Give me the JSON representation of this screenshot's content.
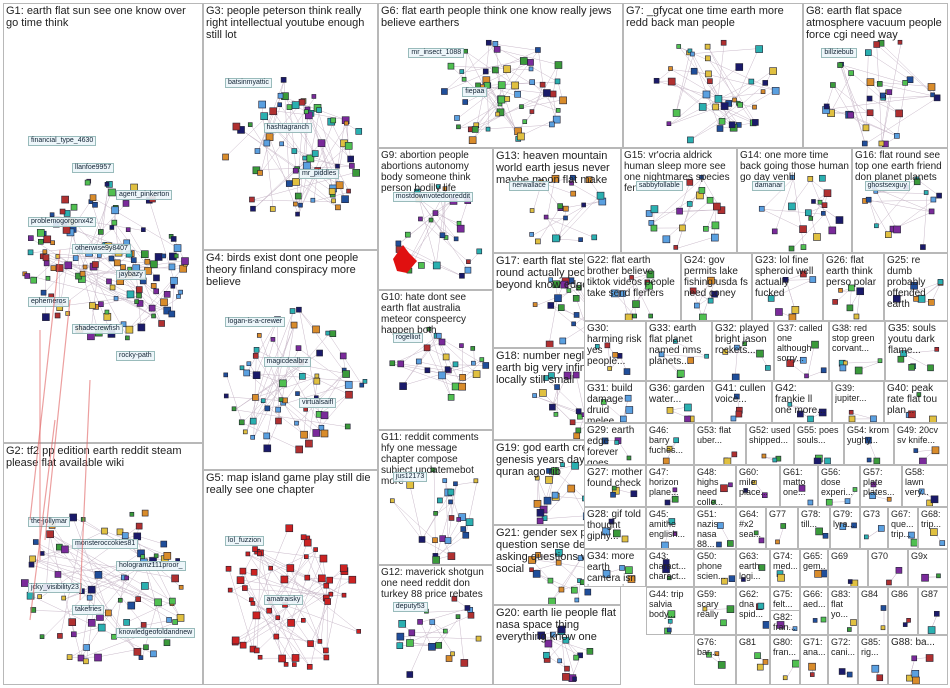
{
  "groups": [
    {
      "id": "G1",
      "keywords": "earth flat sun see one know over go time think",
      "labels": [
        "financial_type_4630",
        "llanfoe9957",
        "agent_pinkerton",
        "problemogorgonx42",
        "otherwise9y8407",
        "jaybazy",
        "ephemeros",
        "shadecrewfish",
        "rocky-path"
      ]
    },
    {
      "id": "G2",
      "keywords": "tf2 pp edition earth reddit steam please flat available wiki",
      "labels": [
        "the-jollymar",
        "monsteroccokies81",
        "hologramz111proor_",
        "jcky_visibility23",
        "takefries",
        "knowledgeofoldandnew"
      ]
    },
    {
      "id": "G3",
      "keywords": "people peterson think really right intellectual youtube enough still lot",
      "labels": [
        "batsinmyattic",
        "hashtagranch",
        "mr_piddles"
      ]
    },
    {
      "id": "G4",
      "keywords": "birds exist dont one people theory finland conspiracy more believe",
      "labels": [
        "logan-is-a-crewer",
        "magicdealbrz",
        "virtualsaifl"
      ]
    },
    {
      "id": "G5",
      "keywords": "map island game play still die really see one chapter",
      "labels": [
        "lol_fuzzion",
        "amatraisky"
      ]
    },
    {
      "id": "G6",
      "keywords": "flat earth people think one know really jews believe earthers",
      "labels": [
        "mr_insect_1088",
        "fiepaa"
      ]
    },
    {
      "id": "G7",
      "keywords": "_gfycat one time earth more redd back man people",
      "labels": []
    },
    {
      "id": "G8",
      "keywords": "earth flat space atmosphere vacuum people force cgi need way",
      "labels": [
        "billziebub"
      ]
    },
    {
      "id": "G9",
      "keywords": "abortion people abortions autonomy body someone think person bodily life",
      "labels": [
        "mostdownvotedonreddit"
      ]
    },
    {
      "id": "G10",
      "keywords": "hate dont see earth flat australia meteor conspeercy happen both",
      "labels": [
        "rogelliot"
      ]
    },
    {
      "id": "G11",
      "keywords": "reddit comments hfy one message chapter compose subject updatemebot more",
      "labels": [
        "jus12173"
      ]
    },
    {
      "id": "G12",
      "keywords": "maverick shotgun one need reddit don turkey 88 price rebates",
      "labels": [
        "deputy53"
      ]
    },
    {
      "id": "G13",
      "keywords": "heaven mountain world earth jesus never maybe moon flat make",
      "labels": [
        "nerwallace"
      ]
    },
    {
      "id": "G14",
      "keywords": "one more time back going those human go day venlil",
      "labels": [
        "damanar"
      ]
    },
    {
      "id": "G15",
      "keywords": "vr'ocria aldrick human sleep more see one nightmares species fen",
      "labels": [
        "sabbyfollable"
      ]
    },
    {
      "id": "G16",
      "keywords": "flat round see top one earth friend don planet planets",
      "labels": [
        "ghostsexguy"
      ]
    },
    {
      "id": "G17",
      "keywords": "earth flat step round actually people beyond know edge find",
      "labels": []
    },
    {
      "id": "G18",
      "keywords": "number negligible earth big very infinity flat locally still small",
      "labels": []
    },
    {
      "id": "G19",
      "keywords": "god earth created genesis years day allah quran ago rib",
      "labels": []
    },
    {
      "id": "G20",
      "keywords": "earth lie people flat nasa space thing everything know one",
      "labels": []
    },
    {
      "id": "G21",
      "keywords": "gender sex people question sense definition asking questions word social",
      "labels": []
    },
    {
      "id": "G22",
      "keywords": "flat earth brother believe tiktok videos people take send flerfers",
      "labels": []
    },
    {
      "id": "G23",
      "keywords": "lol fine spheroid well actually fucked",
      "labels": []
    },
    {
      "id": "G24",
      "keywords": "gov permits lake fishing usda fs need coney",
      "labels": []
    },
    {
      "id": "G25",
      "keywords": "re dumb probably offended earth",
      "labels": []
    },
    {
      "id": "G26",
      "keywords": "flat earth think perso polar",
      "labels": []
    },
    {
      "id": "G27",
      "keywords": "mother found check",
      "labels": []
    },
    {
      "id": "G28",
      "keywords": "gif told thought giphy...",
      "labels": []
    },
    {
      "id": "G29",
      "keywords": "earth edge forever goes...",
      "labels": []
    },
    {
      "id": "G30",
      "keywords": "harming risk yes people...",
      "labels": []
    },
    {
      "id": "G31",
      "keywords": "build damage druid melee...",
      "labels": []
    },
    {
      "id": "G32",
      "keywords": "played bright jason rockets...",
      "labels": []
    },
    {
      "id": "G33",
      "keywords": "earth flat planet named nms planets...",
      "labels": []
    },
    {
      "id": "G34",
      "keywords": "more earth camera isn jump cgi...",
      "labels": []
    },
    {
      "id": "G35",
      "keywords": "souls youtu dark flame...",
      "labels": []
    },
    {
      "id": "G36",
      "keywords": "garden water...",
      "labels": []
    },
    {
      "id": "G37",
      "keywords": "called one although sorry...",
      "labels": []
    },
    {
      "id": "G38",
      "keywords": "red stop green corvant...",
      "labels": []
    },
    {
      "id": "G39",
      "keywords": "jupiter...",
      "labels": []
    },
    {
      "id": "G40",
      "keywords": "peak rate flat tou plan...",
      "labels": []
    },
    {
      "id": "G41",
      "keywords": "cullen voice...",
      "labels": []
    },
    {
      "id": "G42",
      "keywords": "frankie ll one more...",
      "labels": []
    },
    {
      "id": "G43",
      "keywords": "charact... charact...",
      "labels": []
    },
    {
      "id": "G44",
      "keywords": "trip salvia body...",
      "labels": []
    },
    {
      "id": "G45",
      "keywords": "amithe english...",
      "labels": []
    },
    {
      "id": "G46",
      "keywords": "barry fuches...",
      "labels": []
    },
    {
      "id": "G47",
      "keywords": "horizon plane...",
      "labels": []
    },
    {
      "id": "G48",
      "keywords": "highs need colle...",
      "labels": []
    },
    {
      "id": "G49",
      "keywords": "20cv sv knife...",
      "labels": []
    },
    {
      "id": "G50",
      "keywords": "phone scien...",
      "labels": []
    },
    {
      "id": "G51",
      "keywords": "nazis nasa 88...",
      "labels": []
    },
    {
      "id": "G52",
      "keywords": "used shipped...",
      "labels": []
    },
    {
      "id": "G53",
      "keywords": "flat uber...",
      "labels": []
    },
    {
      "id": "G54",
      "keywords": "krom yughy...",
      "labels": []
    },
    {
      "id": "G55",
      "keywords": "poes souls...",
      "labels": []
    },
    {
      "id": "G56",
      "keywords": "dose experi...",
      "labels": []
    },
    {
      "id": "G57",
      "keywords": "plate plates...",
      "labels": []
    },
    {
      "id": "G58",
      "keywords": "lawn very...",
      "labels": []
    },
    {
      "id": "G59",
      "keywords": "scary really",
      "labels": []
    },
    {
      "id": "G60",
      "keywords": "mile place...",
      "labels": []
    },
    {
      "id": "G61",
      "keywords": "matto one...",
      "labels": []
    },
    {
      "id": "G62",
      "keywords": "dna spid...",
      "labels": []
    },
    {
      "id": "G63",
      "keywords": "earth logi...",
      "labels": []
    },
    {
      "id": "G64",
      "keywords": "#x2 sea...",
      "labels": []
    },
    {
      "id": "G65",
      "keywords": "gem...",
      "labels": []
    },
    {
      "id": "G66",
      "keywords": "aed...",
      "labels": []
    },
    {
      "id": "G67",
      "keywords": "que... trip...",
      "labels": []
    },
    {
      "id": "G68",
      "keywords": "trip...",
      "labels": []
    },
    {
      "id": "G69",
      "keywords": "",
      "labels": []
    },
    {
      "id": "G70",
      "keywords": "",
      "labels": []
    },
    {
      "id": "G71",
      "keywords": "ana...",
      "labels": []
    },
    {
      "id": "G72",
      "keywords": "cani...",
      "labels": []
    },
    {
      "id": "G73",
      "keywords": "",
      "labels": []
    },
    {
      "id": "G74",
      "keywords": "med...",
      "labels": []
    },
    {
      "id": "G75",
      "keywords": "felt...",
      "labels": []
    },
    {
      "id": "G76",
      "keywords": "bar...",
      "labels": []
    },
    {
      "id": "G77",
      "keywords": "",
      "labels": []
    },
    {
      "id": "G78",
      "keywords": "till...",
      "labels": []
    },
    {
      "id": "G79",
      "keywords": "lyra...",
      "labels": []
    },
    {
      "id": "G80",
      "keywords": "fran...",
      "labels": []
    },
    {
      "id": "G81",
      "keywords": "",
      "labels": []
    },
    {
      "id": "G82",
      "keywords": "fran...",
      "labels": []
    },
    {
      "id": "G83",
      "keywords": "flat yo...",
      "labels": []
    },
    {
      "id": "G84",
      "keywords": "",
      "labels": []
    },
    {
      "id": "G85",
      "keywords": "rig...",
      "labels": []
    },
    {
      "id": "G86",
      "keywords": "",
      "labels": []
    },
    {
      "id": "G87",
      "keywords": "",
      "labels": []
    },
    {
      "id": "G88",
      "keywords": "ba...",
      "labels": []
    },
    {
      "id": "G9x",
      "keywords": "",
      "labels": []
    }
  ],
  "colors": {
    "border": "#b8b8b8",
    "edge": "#c9b9c9",
    "edge_strong": "#e06060",
    "red_group": "#cc2222",
    "node_palette": [
      "#1f4e9a",
      "#3a9a3a",
      "#d98c2b",
      "#7a2a9a",
      "#2ab0b0",
      "#1a1a6a",
      "#b03030",
      "#e0c040",
      "#5aa0e0",
      "#50c050"
    ]
  }
}
